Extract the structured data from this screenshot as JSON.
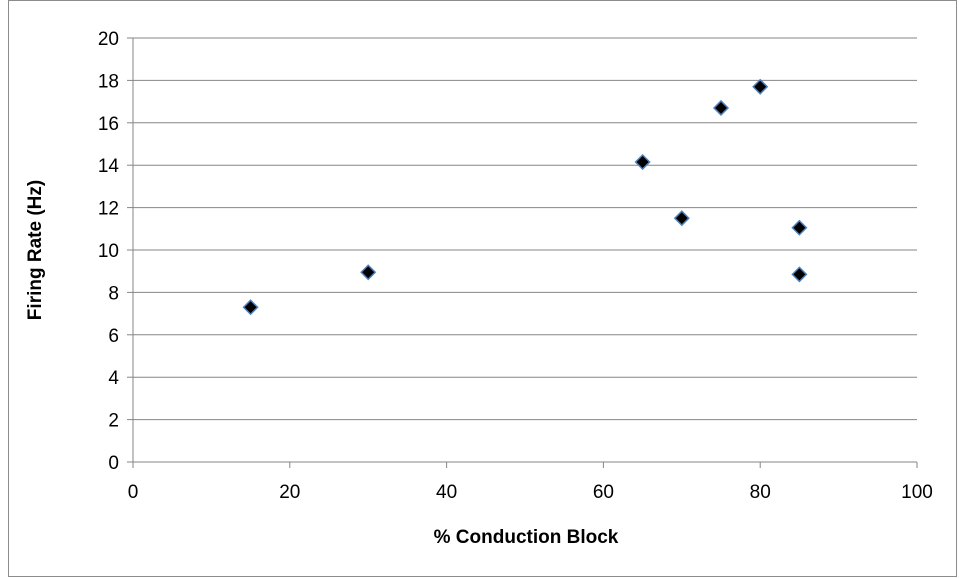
{
  "chart_data": {
    "type": "scatter",
    "xlabel": "% Conduction Block",
    "ylabel": "Firing Rate (Hz)",
    "xlim": [
      0,
      100
    ],
    "ylim": [
      0,
      20
    ],
    "x_ticks": [
      "0",
      "20",
      "40",
      "60",
      "80",
      "100"
    ],
    "y_ticks": [
      "0",
      "2",
      "4",
      "6",
      "8",
      "10",
      "12",
      "14",
      "16",
      "18",
      "20"
    ],
    "grid": "horizontal",
    "legend": "none",
    "marker": "diamond",
    "marker_fill": "#000000",
    "marker_edge": "#4f81bd",
    "points": [
      {
        "x": 15,
        "y": 7.3
      },
      {
        "x": 30,
        "y": 8.95
      },
      {
        "x": 65,
        "y": 14.15
      },
      {
        "x": 70,
        "y": 11.5
      },
      {
        "x": 75,
        "y": 16.7
      },
      {
        "x": 80,
        "y": 17.7
      },
      {
        "x": 85,
        "y": 11.05
      },
      {
        "x": 85,
        "y": 8.85
      }
    ]
  }
}
